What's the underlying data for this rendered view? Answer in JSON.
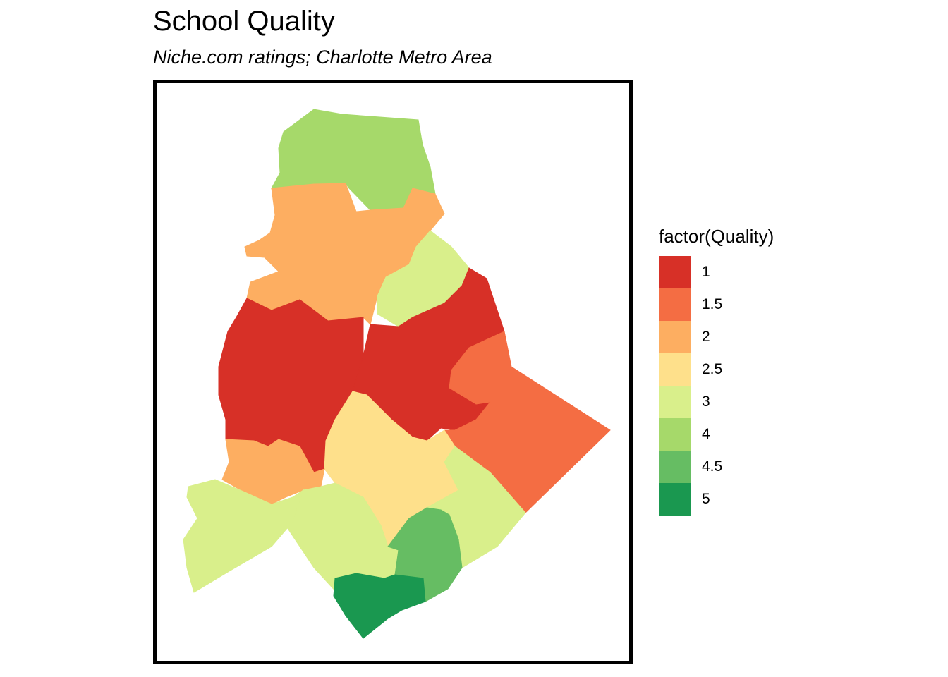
{
  "title": "School Quality",
  "subtitle": "Niche.com ratings; Charlotte Metro Area",
  "legend": {
    "title": "factor(Quality)",
    "items": [
      {
        "label": "1",
        "color": "#d73027"
      },
      {
        "label": "1.5",
        "color": "#f46d43"
      },
      {
        "label": "2",
        "color": "#fdae61"
      },
      {
        "label": "2.5",
        "color": "#fee08b"
      },
      {
        "label": "3",
        "color": "#d9ef8b"
      },
      {
        "label": "4",
        "color": "#a6d96a"
      },
      {
        "label": "4.5",
        "color": "#66bd63"
      },
      {
        "label": "5",
        "color": "#1a9850"
      }
    ]
  },
  "regions": [
    {
      "name": "north",
      "quality": "4"
    },
    {
      "name": "north-central",
      "quality": "2"
    },
    {
      "name": "northeast-strip",
      "quality": "3"
    },
    {
      "name": "central-west",
      "quality": "1"
    },
    {
      "name": "central-east",
      "quality": "1"
    },
    {
      "name": "east",
      "quality": "1.5"
    },
    {
      "name": "south-central",
      "quality": "2.5"
    },
    {
      "name": "southwest",
      "quality": "2"
    },
    {
      "name": "west",
      "quality": "3"
    },
    {
      "name": "south-west-central",
      "quality": "3"
    },
    {
      "name": "southeast",
      "quality": "3"
    },
    {
      "name": "south-near",
      "quality": "4.5"
    },
    {
      "name": "far-south",
      "quality": "5"
    }
  ]
}
